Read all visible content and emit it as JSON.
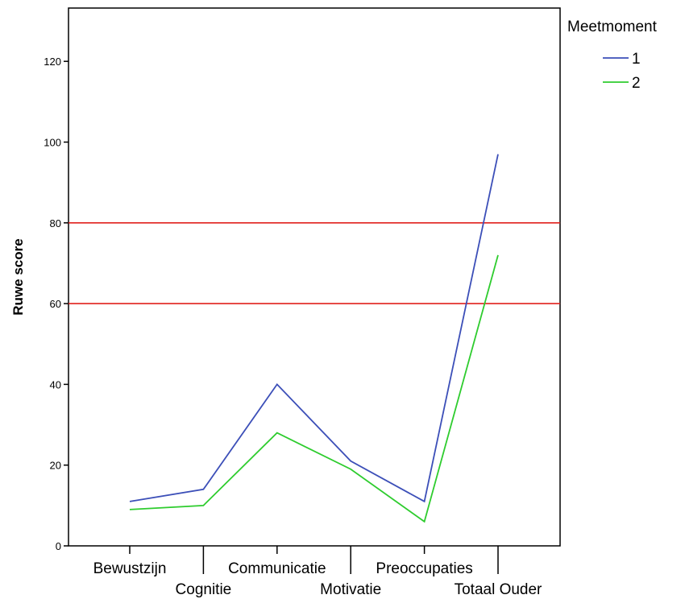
{
  "chart_data": {
    "type": "line",
    "title": "",
    "xlabel": "",
    "ylabel": "Ruwe score",
    "categories": [
      "Bewustzijn",
      "Cognitie",
      "Communicatie",
      "Motivatie",
      "Preoccupaties",
      "Totaal Ouder"
    ],
    "yticks": [
      0,
      20,
      40,
      60,
      80,
      100,
      120
    ],
    "ylim": [
      0,
      120
    ],
    "grid": false,
    "legend": {
      "title": "Meetmoment",
      "placement": "top-right"
    },
    "series": [
      {
        "name": "1",
        "color": "#3c4fb8",
        "values": [
          11,
          14,
          40,
          21,
          11,
          97
        ]
      },
      {
        "name": "2",
        "color": "#2ecc2e",
        "values": [
          9,
          10,
          28,
          19,
          6,
          72
        ]
      }
    ],
    "reference_lines": [
      {
        "y": 80,
        "color": "#e0201c"
      },
      {
        "y": 60,
        "color": "#e0201c"
      }
    ]
  }
}
